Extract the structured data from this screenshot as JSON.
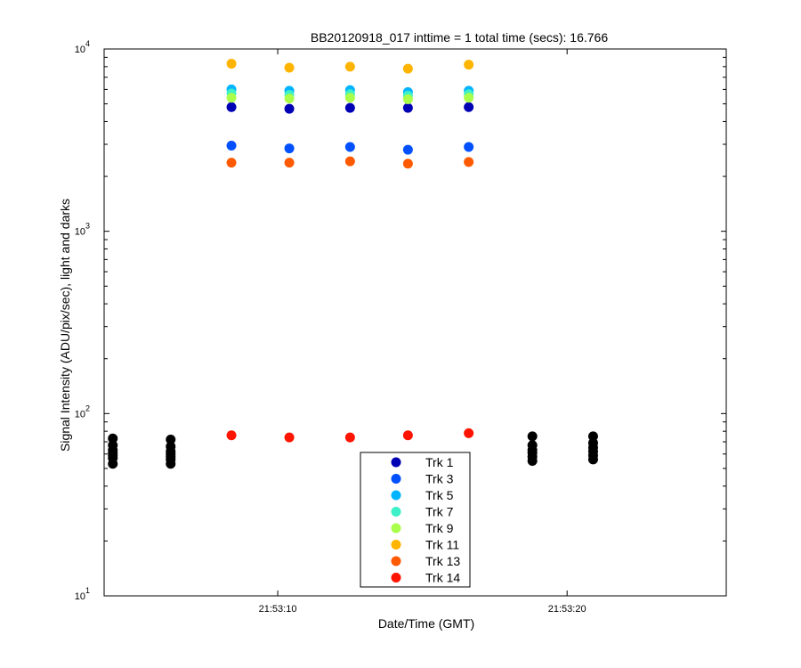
{
  "chart_data": {
    "type": "scatter",
    "title": "BB20120918_017 inttime = 1 total time (secs): 16.766",
    "xlabel": "Date/Time (GMT)",
    "ylabel": "Signal Intensity (ADU/pix/sec), light and darks",
    "x_scale": "time",
    "y_scale": "log",
    "xlim": [
      "21:53:04",
      "21:53:25.5"
    ],
    "ylim": [
      10,
      10000
    ],
    "x_ticks": [
      {
        "value": "21:53:10",
        "label": "21:53:10"
      },
      {
        "value": "21:53:20",
        "label": "21:53:20"
      }
    ],
    "y_ticks": [
      {
        "value": 10,
        "base": "10",
        "exp": "1"
      },
      {
        "value": 100,
        "base": "10",
        "exp": "2"
      },
      {
        "value": 1000,
        "base": "10",
        "exp": "3"
      },
      {
        "value": 10000,
        "base": "10",
        "exp": "4"
      }
    ],
    "grid": false,
    "legend_position": "bottom-center",
    "series": [
      {
        "name": "Trk 1",
        "color": "#0000b4",
        "x": [
          "21:53:08.4",
          "21:53:10.4",
          "21:53:12.5",
          "21:53:14.5",
          "21:53:16.6"
        ],
        "y": [
          4800,
          4700,
          4750,
          4750,
          4800
        ]
      },
      {
        "name": "Trk 3",
        "color": "#0050ff",
        "x": [
          "21:53:08.4",
          "21:53:10.4",
          "21:53:12.5",
          "21:53:14.5",
          "21:53:16.6"
        ],
        "y": [
          2950,
          2850,
          2900,
          2800,
          2900
        ]
      },
      {
        "name": "Trk 5",
        "color": "#00b4ff",
        "x": [
          "21:53:08.4",
          "21:53:10.4",
          "21:53:12.5",
          "21:53:14.5",
          "21:53:16.6"
        ],
        "y": [
          6000,
          5900,
          5950,
          5800,
          5900
        ]
      },
      {
        "name": "Trk 7",
        "color": "#3cf0c8",
        "x": [
          "21:53:08.4",
          "21:53:10.4",
          "21:53:12.5",
          "21:53:14.5",
          "21:53:16.6"
        ],
        "y": [
          5700,
          5600,
          5650,
          5550,
          5650
        ]
      },
      {
        "name": "Trk 9",
        "color": "#aaff4a",
        "x": [
          "21:53:08.4",
          "21:53:10.4",
          "21:53:12.5",
          "21:53:14.5",
          "21:53:16.6"
        ],
        "y": [
          5400,
          5350,
          5400,
          5300,
          5400
        ]
      },
      {
        "name": "Trk 11",
        "color": "#ffb400",
        "x": [
          "21:53:08.4",
          "21:53:10.4",
          "21:53:12.5",
          "21:53:14.5",
          "21:53:16.6"
        ],
        "y": [
          8300,
          7900,
          8000,
          7800,
          8200
        ]
      },
      {
        "name": "Trk 13",
        "color": "#ff5a00",
        "x": [
          "21:53:08.4",
          "21:53:10.4",
          "21:53:12.5",
          "21:53:14.5",
          "21:53:16.6"
        ],
        "y": [
          2380,
          2380,
          2420,
          2350,
          2400
        ]
      },
      {
        "name": "Trk 14",
        "color": "#ff1400",
        "x": [
          "21:53:08.4",
          "21:53:10.4",
          "21:53:12.5",
          "21:53:14.5",
          "21:53:16.6"
        ],
        "y": [
          76,
          74,
          74,
          76,
          78
        ]
      },
      {
        "color": "#000000",
        "x": [
          "21:53:04.3",
          "21:53:04.3",
          "21:53:04.3",
          "21:53:04.3",
          "21:53:04.3",
          "21:53:04.3",
          "21:53:04.3",
          "21:53:06.3",
          "21:53:06.3",
          "21:53:06.3",
          "21:53:06.3",
          "21:53:06.3",
          "21:53:06.3",
          "21:53:06.3",
          "21:53:18.8",
          "21:53:18.8",
          "21:53:18.8",
          "21:53:18.8",
          "21:53:18.8",
          "21:53:18.8",
          "21:53:20.9",
          "21:53:20.9",
          "21:53:20.9",
          "21:53:20.9",
          "21:53:20.9",
          "21:53:20.9"
        ],
        "y": [
          73,
          67,
          63,
          61,
          59,
          57,
          53,
          72,
          66,
          62,
          60,
          58,
          56,
          53,
          75,
          67,
          63,
          61,
          58,
          55,
          75,
          69,
          65,
          62,
          59,
          56
        ]
      }
    ]
  }
}
